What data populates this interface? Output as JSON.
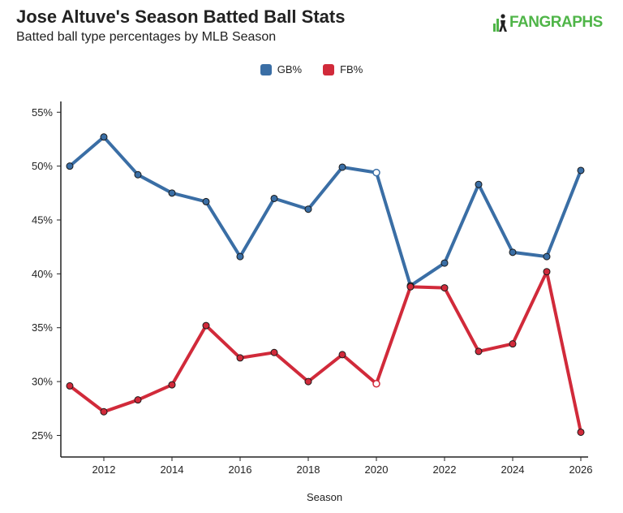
{
  "header": {
    "title": "Jose Altuve's Season Batted Ball Stats",
    "subtitle": "Batted ball type percentages by MLB Season",
    "logo_text": "FANGRAPHS"
  },
  "colors": {
    "gb": "#3a6ea5",
    "fb": "#d12a3a",
    "logo": "#4fb548"
  },
  "chart_data": {
    "type": "line",
    "title": "Jose Altuve's Season Batted Ball Stats",
    "subtitle": "Batted ball type percentages by MLB Season",
    "xlabel": "Season",
    "ylabel": "",
    "xlim": [
      2011,
      2026
    ],
    "ylim": [
      23,
      56
    ],
    "x_ticks": [
      2012,
      2014,
      2016,
      2018,
      2020,
      2022,
      2024,
      2026
    ],
    "y_ticks": [
      "25%",
      "30%",
      "35%",
      "40%",
      "45%",
      "50%",
      "55%"
    ],
    "y_tick_values": [
      25,
      30,
      35,
      40,
      45,
      50,
      55
    ],
    "grid": false,
    "legend_position": "top-center",
    "x": [
      2011,
      2012,
      2013,
      2014,
      2015,
      2016,
      2017,
      2018,
      2019,
      2020,
      2021,
      2022,
      2023,
      2024,
      2025,
      2026
    ],
    "open_marker_x": [
      2020
    ],
    "series": [
      {
        "name": "GB%",
        "color": "#3a6ea5",
        "values": [
          50.0,
          52.7,
          49.2,
          47.5,
          46.7,
          41.6,
          47.0,
          46.0,
          49.9,
          49.4,
          38.9,
          41.0,
          48.3,
          42.0,
          41.6,
          49.6
        ]
      },
      {
        "name": "FB%",
        "color": "#d12a3a",
        "values": [
          29.6,
          27.2,
          28.3,
          29.7,
          35.2,
          32.2,
          32.7,
          30.0,
          32.5,
          29.8,
          38.8,
          38.7,
          32.8,
          33.5,
          40.2,
          25.3
        ]
      }
    ]
  }
}
